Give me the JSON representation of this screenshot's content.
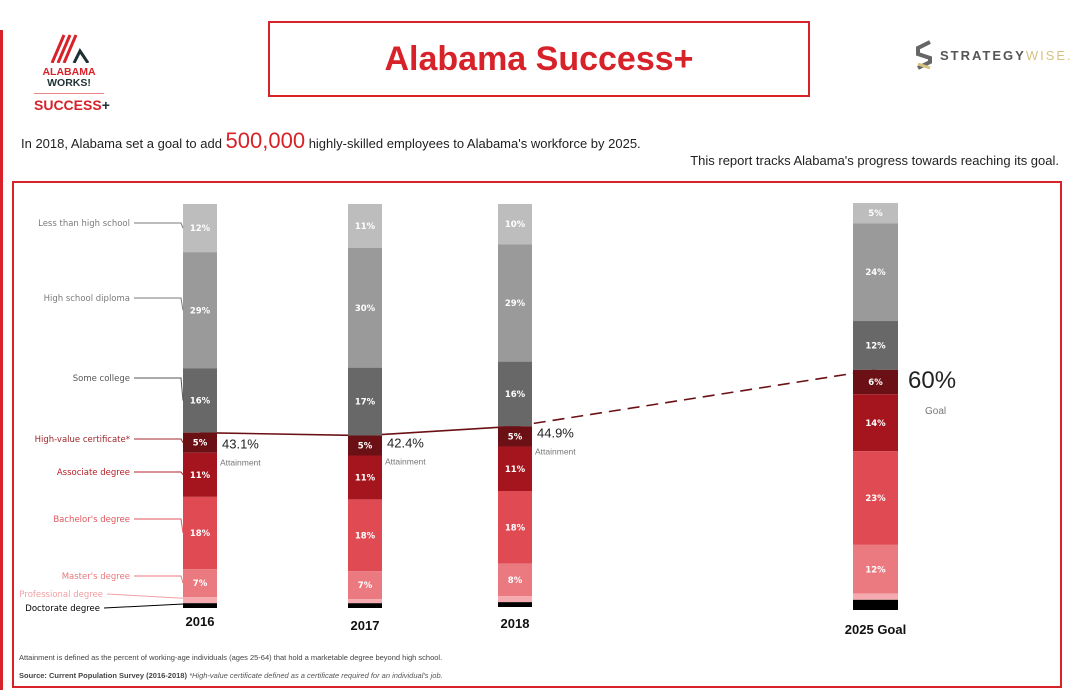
{
  "header": {
    "title": "Alabama Success+",
    "logo_left": {
      "line1": "ALABAMA",
      "line2": "WORKS!",
      "line3": "SUCCESS",
      "plus": "+"
    },
    "logo_right": {
      "word1": "STRATEGY",
      "word2": "WISE."
    }
  },
  "intro": {
    "pre": "In 2018, Alabama set a goal to add ",
    "highlight": "500,000",
    "post": " highly-skilled employees to Alabama's workforce by 2025.",
    "line2": "This report tracks Alabama's progress towards reaching its goal."
  },
  "colors": {
    "accent": "#d8222a"
  },
  "chart_data": {
    "type": "stacked-bar",
    "categories": [
      "2016",
      "2017",
      "2018",
      "2025 Goal"
    ],
    "series": [
      {
        "name": "Less than high school",
        "color": "#bdbdbd",
        "label_color": "#7a7a7a",
        "values": [
          12,
          11,
          10,
          5
        ]
      },
      {
        "name": "High school diploma",
        "color": "#9a9a9a",
        "label_color": "#7a7a7a",
        "values": [
          29,
          30,
          29,
          24
        ]
      },
      {
        "name": "Some college",
        "color": "#686868",
        "label_color": "#555555",
        "values": [
          16,
          17,
          16,
          12
        ]
      },
      {
        "name": "High-value certificate*",
        "color": "#6b1014",
        "label_color": "#a0282d",
        "values": [
          5,
          5,
          5,
          6
        ]
      },
      {
        "name": "Associate degree",
        "color": "#a5151e",
        "label_color": "#b52028",
        "values": [
          11,
          11,
          11,
          14
        ]
      },
      {
        "name": "Bachelor's degree",
        "color": "#e04a52",
        "label_color": "#e0555b",
        "values": [
          18,
          18,
          18,
          23
        ]
      },
      {
        "name": "Master's degree",
        "color": "#eb7a80",
        "label_color": "#e8777c",
        "values": [
          7,
          7,
          8,
          12
        ]
      },
      {
        "name": "Professional degree",
        "color": "#f4aaae",
        "label_color": "#f0a0a4",
        "values": [
          1.5,
          1,
          1.5,
          1.5
        ]
      },
      {
        "name": "Doctorate degree",
        "color": "#000000",
        "label_color": "#000000",
        "values": [
          1.2,
          1.2,
          1.2,
          2.5
        ]
      }
    ],
    "labeled_series_count": 7,
    "attainment": {
      "values": [
        "43.1%",
        "42.4%",
        "44.9%",
        "60%"
      ],
      "labels": [
        "Attainment",
        "Attainment",
        "Attainment",
        "Goal"
      ],
      "line_color": "#6b1014",
      "goal_dashed": true
    }
  },
  "footnotes": {
    "definition": "Attainment is defined as the percent of working-age individuals (ages 25-64) that hold a marketable degree beyond high school.",
    "source": "Source: Current Population Survey (2016-2018)",
    "certificate_note": "*High-value certificate defined as a certificate required for an individual's job."
  }
}
